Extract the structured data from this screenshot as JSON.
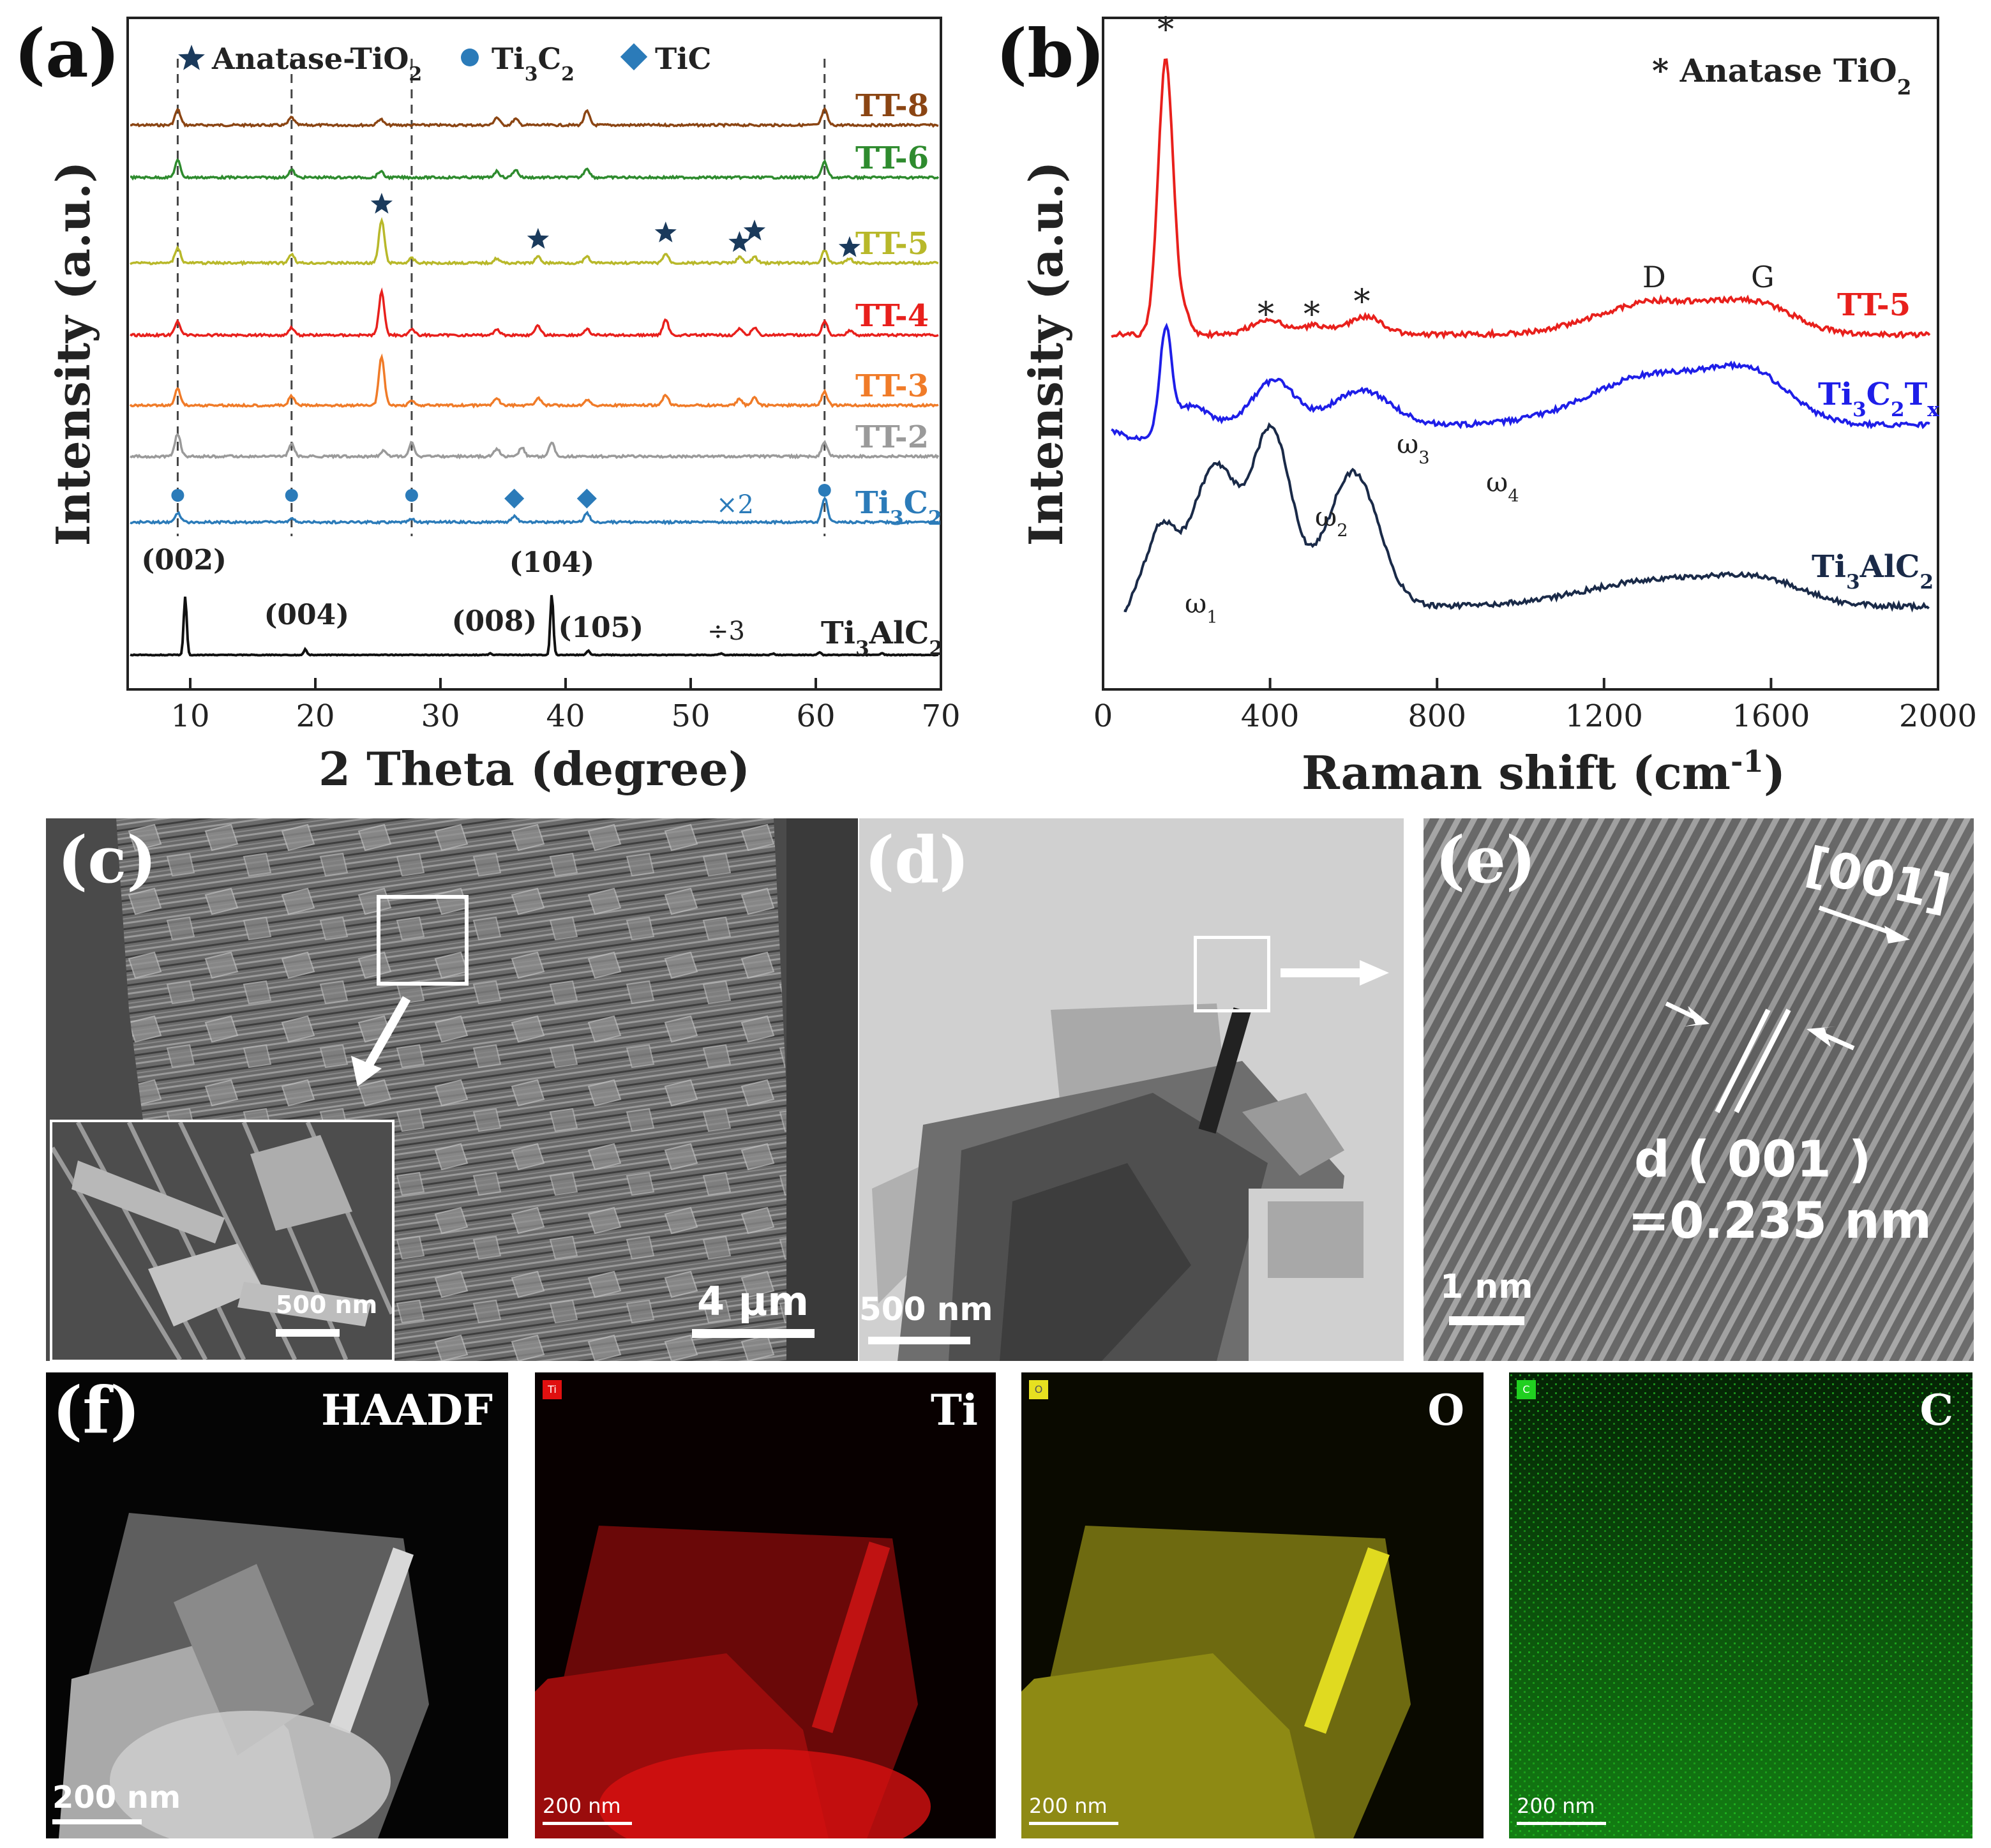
{
  "chart_data": [
    {
      "type": "line",
      "panel_label": "(a)",
      "title": "",
      "xlabel": "2 Theta (degree)",
      "ylabel": "Intensity (a.u.)",
      "xlim": [
        5,
        70
      ],
      "xticks": [
        10,
        20,
        30,
        40,
        50,
        60,
        70
      ],
      "legend": [
        {
          "symbol": "star",
          "label_main": "Anatase-TiO",
          "label_sub": "2"
        },
        {
          "symbol": "circle",
          "label_main": "Ti",
          "label_sub1": "3",
          "label_mid": "C",
          "label_sub2": "2"
        },
        {
          "symbol": "diamond",
          "label": "TiC"
        }
      ],
      "reference_lines_x": [
        9.0,
        18.1,
        27.7,
        60.7
      ],
      "series": [
        {
          "name": "TT-8",
          "color": "#8B4513",
          "peaks": [
            [
              9.0,
              1.0
            ],
            [
              18.1,
              0.5
            ],
            [
              25.2,
              0.4
            ],
            [
              34.5,
              0.5
            ],
            [
              36.0,
              0.4
            ],
            [
              41.7,
              0.9
            ],
            [
              60.7,
              1.0
            ]
          ]
        },
        {
          "name": "TT-6",
          "color": "#2E8B2E",
          "peaks": [
            [
              9.0,
              1.1
            ],
            [
              18.1,
              0.5
            ],
            [
              25.2,
              0.4
            ],
            [
              34.5,
              0.4
            ],
            [
              36.0,
              0.5
            ],
            [
              41.7,
              0.6
            ],
            [
              60.7,
              1.0
            ]
          ]
        },
        {
          "name": "TT-5",
          "color": "#B8B82A",
          "peaks": [
            [
              9.0,
              1.0
            ],
            [
              18.1,
              0.6
            ],
            [
              25.3,
              2.8
            ],
            [
              27.7,
              0.3
            ],
            [
              34.5,
              0.3
            ],
            [
              37.8,
              0.4
            ],
            [
              41.7,
              0.4
            ],
            [
              48.0,
              0.6
            ],
            [
              53.9,
              0.4
            ],
            [
              55.1,
              0.4
            ],
            [
              60.7,
              0.8
            ],
            [
              62.7,
              0.3
            ]
          ]
        },
        {
          "name": "TT-4",
          "color": "#E8201C",
          "peaks": [
            [
              9.0,
              0.9
            ],
            [
              18.1,
              0.5
            ],
            [
              25.3,
              2.8
            ],
            [
              27.7,
              0.4
            ],
            [
              34.5,
              0.4
            ],
            [
              37.8,
              0.6
            ],
            [
              41.7,
              0.4
            ],
            [
              48.0,
              1.0
            ],
            [
              53.9,
              0.4
            ],
            [
              55.1,
              0.5
            ],
            [
              60.7,
              0.9
            ],
            [
              62.7,
              0.3
            ]
          ]
        },
        {
          "name": "TT-3",
          "color": "#F07B28",
          "peaks": [
            [
              9.0,
              1.1
            ],
            [
              18.1,
              0.6
            ],
            [
              25.3,
              3.2
            ],
            [
              27.7,
              0.3
            ],
            [
              34.5,
              0.5
            ],
            [
              37.8,
              0.5
            ],
            [
              41.7,
              0.4
            ],
            [
              48.0,
              0.7
            ],
            [
              53.9,
              0.4
            ],
            [
              55.1,
              0.5
            ],
            [
              60.7,
              0.9
            ]
          ]
        },
        {
          "name": "TT-2",
          "color": "#9A9A9A",
          "peaks": [
            [
              9.0,
              1.5
            ],
            [
              18.1,
              0.8
            ],
            [
              25.5,
              0.4
            ],
            [
              27.7,
              0.9
            ],
            [
              34.5,
              0.5
            ],
            [
              36.5,
              0.6
            ],
            [
              38.9,
              0.9
            ],
            [
              60.7,
              0.9
            ]
          ]
        },
        {
          "name": "Ti3C2",
          "label_main": "Ti",
          "label_sub1": "3",
          "label_mid": "C",
          "label_sub2": "2",
          "annotation": "×2",
          "color": "#2B7BB9",
          "peaks": [
            [
              9.0,
              0.6
            ],
            [
              18.1,
              0.2
            ],
            [
              27.7,
              0.2
            ],
            [
              35.9,
              0.4
            ],
            [
              41.7,
              0.6
            ],
            [
              60.7,
              1.6
            ]
          ]
        },
        {
          "name": "Ti3AlC2",
          "label_main": "Ti",
          "label_sub1": "3",
          "label_mid": "AlC",
          "label_sub2": "2",
          "annotation": "÷3",
          "color": "#111111",
          "peaks": [
            [
              9.6,
              4.0
            ],
            [
              19.2,
              0.4
            ],
            [
              34.0,
              0.1
            ],
            [
              38.9,
              4.2
            ],
            [
              41.8,
              0.3
            ],
            [
              52.4,
              0.1
            ],
            [
              56.6,
              0.1
            ],
            [
              60.3,
              0.2
            ],
            [
              65.3,
              0.1
            ]
          ]
        }
      ],
      "peak_labels": [
        {
          "x": 9.6,
          "text": "(002)"
        },
        {
          "x": 19.2,
          "text": "(004)"
        },
        {
          "x": 34.0,
          "text": "(008)"
        },
        {
          "x": 38.9,
          "text": "(104)"
        },
        {
          "x": 41.8,
          "text": "(105)"
        }
      ],
      "markers": {
        "star_x": [
          25.3,
          37.8,
          48.0,
          53.9,
          55.1,
          62.7
        ],
        "circle_x": [
          9.0,
          18.1,
          27.7,
          60.7
        ],
        "diamond_x": [
          35.9,
          41.7
        ]
      }
    },
    {
      "type": "line",
      "panel_label": "(b)",
      "title": "",
      "xlabel_main": "Raman shift (cm",
      "xlabel_sup": "-1",
      "xlabel_tail": ")",
      "ylabel": "Intensity (a.u.)",
      "xlim": [
        0,
        2000
      ],
      "xticks": [
        0,
        400,
        800,
        1200,
        1600,
        2000
      ],
      "legend_text_main": "Anatase TiO",
      "legend_text_sub": "2",
      "legend_symbol": "*",
      "series": [
        {
          "name": "TT-5",
          "color": "#E8201C"
        },
        {
          "name": "Ti3C2Tx",
          "label_main": "Ti",
          "label_sub1": "3",
          "label_mid": "C",
          "label_sub2": "2",
          "label_mid2": "T",
          "label_sub3": "x",
          "color": "#1E1EE8"
        },
        {
          "name": "Ti3AlC2",
          "label_main": "Ti",
          "label_sub1": "3",
          "label_mid": "AlC",
          "label_sub2": "2",
          "color": "#1A2A48"
        }
      ],
      "star_x": [
        150,
        390,
        500,
        620
      ],
      "mode_labels": [
        {
          "x": 130,
          "main": "ω",
          "sub": "1"
        },
        {
          "x": 260,
          "main": "ω",
          "sub": "2"
        },
        {
          "x": 400,
          "main": "ω",
          "sub": "3"
        },
        {
          "x": 600,
          "main": "ω",
          "sub": "4"
        }
      ],
      "band_labels": [
        {
          "x": 1320,
          "text": "D"
        },
        {
          "x": 1580,
          "text": "G"
        }
      ]
    }
  ],
  "panels": {
    "c": {
      "label": "(c)",
      "scale": "4 μm",
      "inset_scale": "500 nm"
    },
    "d": {
      "label": "(d)",
      "scale": "500 nm"
    },
    "e": {
      "label": "(e)",
      "direction": "[001]",
      "d_line1": "d ( 001 )",
      "d_line2": "=0.235 nm",
      "scale": "1 nm"
    },
    "f": {
      "label": "(f)",
      "maps": [
        {
          "name": "HAADF",
          "badge": "",
          "scale": "200 nm",
          "color": "#d8d8d8"
        },
        {
          "name": "Ti",
          "badge": "Ti",
          "scale": "200 nm",
          "color": "#e01010"
        },
        {
          "name": "O",
          "badge": "O",
          "scale": "200 nm",
          "color": "#e6e020"
        },
        {
          "name": "C",
          "badge": "C",
          "scale": "200 nm",
          "color": "#20d020"
        }
      ]
    }
  }
}
